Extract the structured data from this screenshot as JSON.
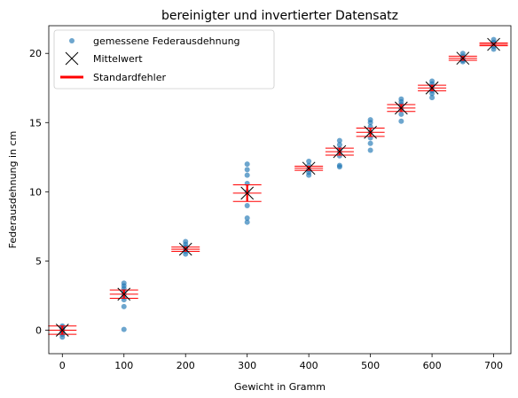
{
  "chart_data": {
    "type": "scatter",
    "title": "bereinigter und invertierter Datensatz",
    "xlabel": "Gewicht in Gramm",
    "ylabel": "Federausdehnung in cm",
    "xlim": [
      -22,
      728
    ],
    "ylim": [
      -1.7,
      22.0
    ],
    "xticks": [
      0,
      100,
      200,
      300,
      400,
      500,
      600,
      700
    ],
    "yticks": [
      0,
      5,
      10,
      15,
      20
    ],
    "grid": false,
    "legend_position": "top-left",
    "legend": {
      "points": "gemessene Federausdehnung",
      "mean": "Mittelwert",
      "error": "Standardfehler"
    },
    "colors": {
      "points": "#1f77b4",
      "mean": "#000000",
      "error": "#ff0000"
    },
    "measurements": [
      {
        "x": 0,
        "y": [
          0.3,
          0.2,
          0.1,
          -0.1,
          -0.3,
          -0.5,
          0.0,
          0.15
        ]
      },
      {
        "x": 100,
        "y": [
          3.4,
          3.2,
          3.0,
          2.8,
          2.6,
          2.4,
          2.2,
          1.7,
          0.05
        ]
      },
      {
        "x": 200,
        "y": [
          6.4,
          6.2,
          6.0,
          5.9,
          5.7,
          5.5
        ]
      },
      {
        "x": 300,
        "y": [
          12.0,
          11.6,
          11.2,
          10.6,
          10.0,
          9.0,
          8.1,
          7.8
        ]
      },
      {
        "x": 400,
        "y": [
          12.2,
          11.9,
          11.6,
          11.4,
          11.2
        ]
      },
      {
        "x": 450,
        "y": [
          13.7,
          13.4,
          13.1,
          12.9,
          12.6,
          11.9,
          11.8
        ]
      },
      {
        "x": 500,
        "y": [
          15.2,
          15.0,
          14.7,
          14.3,
          13.9,
          13.5,
          13.0
        ]
      },
      {
        "x": 550,
        "y": [
          16.7,
          16.5,
          16.3,
          16.0,
          15.6,
          15.1
        ]
      },
      {
        "x": 600,
        "y": [
          18.0,
          17.8,
          17.6,
          17.3,
          17.1,
          16.8
        ]
      },
      {
        "x": 650,
        "y": [
          20.0,
          19.8,
          19.6,
          19.5,
          19.4
        ]
      },
      {
        "x": 700,
        "y": [
          21.0,
          20.8,
          20.7,
          20.5,
          20.3
        ]
      }
    ],
    "means": [
      {
        "x": 0,
        "y": 0.0,
        "se": 0.3
      },
      {
        "x": 100,
        "y": 2.6,
        "se": 0.3
      },
      {
        "x": 200,
        "y": 5.85,
        "se": 0.15
      },
      {
        "x": 300,
        "y": 9.9,
        "se": 0.6
      },
      {
        "x": 400,
        "y": 11.7,
        "se": 0.15
      },
      {
        "x": 450,
        "y": 12.9,
        "se": 0.25
      },
      {
        "x": 500,
        "y": 14.3,
        "se": 0.3
      },
      {
        "x": 550,
        "y": 16.05,
        "se": 0.25
      },
      {
        "x": 600,
        "y": 17.5,
        "se": 0.2
      },
      {
        "x": 650,
        "y": 19.65,
        "se": 0.15
      },
      {
        "x": 700,
        "y": 20.65,
        "se": 0.1
      }
    ]
  }
}
